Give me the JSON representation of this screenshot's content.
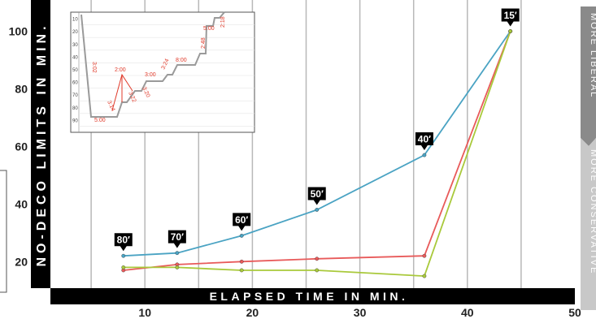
{
  "chart_data": {
    "type": "line",
    "xlabel": "ELAPSED TIME IN MIN.",
    "ylabel": "NO-DECO LIMITS IN MIN.",
    "xlim": [
      0,
      50
    ],
    "ylim": [
      6,
      110
    ],
    "x_ticks": [
      "10",
      "20",
      "30",
      "40",
      "50"
    ],
    "y_ticks": [
      "20",
      "40",
      "60",
      "80",
      "100"
    ],
    "grid": "vertical",
    "series": [
      {
        "color": "#4aa3c3",
        "points": [
          [
            8,
            22
          ],
          [
            13,
            23
          ],
          [
            19,
            29
          ],
          [
            26,
            38
          ],
          [
            36,
            57
          ],
          [
            44,
            100
          ]
        ]
      },
      {
        "color": "#e85a5a",
        "points": [
          [
            8,
            17
          ],
          [
            13,
            19
          ],
          [
            19,
            20
          ],
          [
            26,
            21
          ],
          [
            36,
            22
          ],
          [
            44,
            100
          ]
        ]
      },
      {
        "color": "#a9c93b",
        "points": [
          [
            8,
            18
          ],
          [
            13,
            18
          ],
          [
            19,
            17
          ],
          [
            26,
            17
          ],
          [
            36,
            15
          ],
          [
            44,
            100
          ]
        ]
      }
    ],
    "depth_markers": [
      {
        "label": "80′",
        "x": 8,
        "y": 22
      },
      {
        "label": "70′",
        "x": 13,
        "y": 23
      },
      {
        "label": "60′",
        "x": 19,
        "y": 29
      },
      {
        "label": "50′",
        "x": 26,
        "y": 38
      },
      {
        "label": "40′",
        "x": 36,
        "y": 57
      },
      {
        "label": "15′",
        "x": 44,
        "y": 100
      }
    ],
    "inset": {
      "y_ticks": [
        "10",
        "20",
        "30",
        "40",
        "50",
        "60",
        "70",
        "80",
        "90"
      ],
      "labels": [
        "3:02",
        "2:00",
        "3:14",
        "3:22",
        "3:20",
        "3:00",
        "3:24",
        "8:00",
        "5:00",
        "2:48",
        "2:18",
        "5:00"
      ]
    },
    "side_tabs": [
      "MORE LIBERAL",
      "MORE CONSERVATIVE"
    ],
    "accent_colors": {
      "frame": "#000000",
      "tab_dark": "#8a8a8a",
      "tab_light": "#c8c8c8"
    }
  }
}
